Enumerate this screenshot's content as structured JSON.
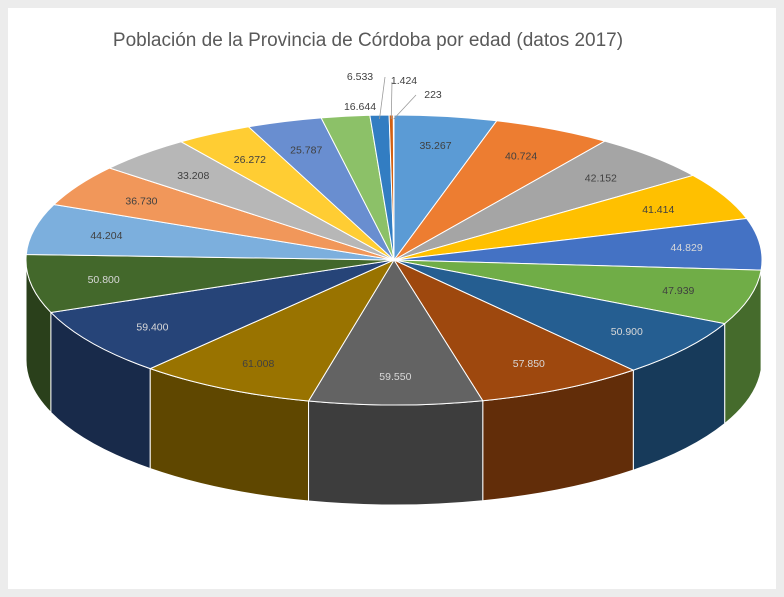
{
  "chart_data": {
    "type": "pie",
    "style": "3d",
    "title": "Población de la Provincia de Córdoba por edad (datos 2017)",
    "legend": "none",
    "slices": [
      {
        "label": "35.267",
        "value": 35267,
        "color": "#5b9bd5"
      },
      {
        "label": "40.724",
        "value": 40724,
        "color": "#ed7d31"
      },
      {
        "label": "42.152",
        "value": 42152,
        "color": "#a5a5a5"
      },
      {
        "label": "41.414",
        "value": 41414,
        "color": "#ffc000"
      },
      {
        "label": "44.829",
        "value": 44829,
        "color": "#4472c4"
      },
      {
        "label": "47.939",
        "value": 47939,
        "color": "#70ad47"
      },
      {
        "label": "50.900",
        "value": 50900,
        "color": "#255e91"
      },
      {
        "label": "57.850",
        "value": 57850,
        "color": "#9e480e"
      },
      {
        "label": "59.550",
        "value": 59550,
        "color": "#636363"
      },
      {
        "label": "61.008",
        "value": 61008,
        "color": "#997300"
      },
      {
        "label": "59.400",
        "value": 59400,
        "color": "#264478"
      },
      {
        "label": "50.800",
        "value": 50800,
        "color": "#43682b"
      },
      {
        "label": "44.204",
        "value": 44204,
        "color": "#7cafdd"
      },
      {
        "label": "36.730",
        "value": 36730,
        "color": "#f1975a"
      },
      {
        "label": "33.208",
        "value": 33208,
        "color": "#b7b7b7"
      },
      {
        "label": "26.272",
        "value": 26272,
        "color": "#ffcd33"
      },
      {
        "label": "25.787",
        "value": 25787,
        "color": "#698ed0"
      },
      {
        "label": "16.644",
        "value": 16644,
        "color": "#8cc168"
      },
      {
        "label": "6.533",
        "value": 6533,
        "color": "#327dc2"
      },
      {
        "label": "1.424",
        "value": 1424,
        "color": "#d26012"
      },
      {
        "label": "223",
        "value": 223,
        "color": "#8b8b8b"
      }
    ]
  }
}
